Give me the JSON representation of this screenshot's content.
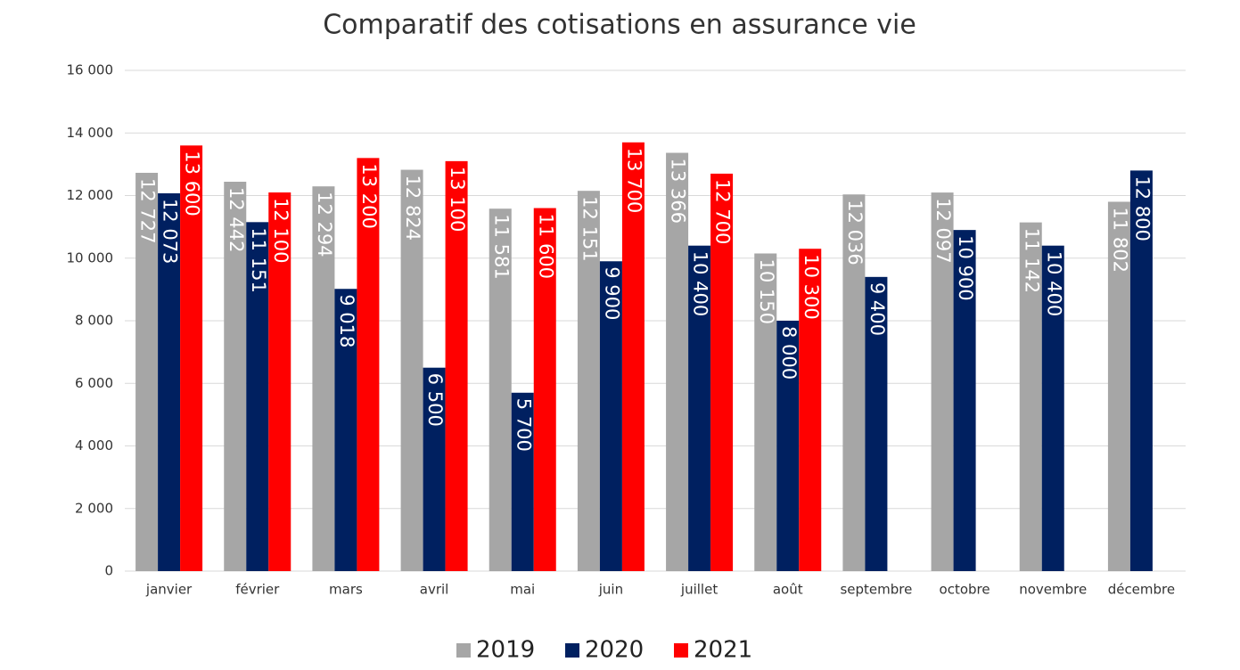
{
  "chart_data": {
    "type": "bar",
    "title": "Comparatif des cotisations en assurance vie",
    "categories": [
      "janvier",
      "février",
      "mars",
      "avril",
      "mai",
      "juin",
      "juillet",
      "août",
      "septembre",
      "octobre",
      "novembre",
      "décembre"
    ],
    "series": [
      {
        "name": "2019",
        "color": "#a6a6a6",
        "values": [
          12727,
          12442,
          12294,
          12824,
          11581,
          12151,
          13366,
          10150,
          12036,
          12097,
          11142,
          11802
        ],
        "value_labels": [
          "12 727",
          "12 442",
          "12 294",
          "12 824",
          "11 581",
          "12 151",
          "13 366",
          "10 150",
          "12 036",
          "12 097",
          "11 142",
          "11 802"
        ]
      },
      {
        "name": "2020",
        "color": "#002060",
        "values": [
          12073,
          11151,
          9018,
          6500,
          5700,
          9900,
          10400,
          8000,
          9400,
          10900,
          10400,
          12800
        ],
        "value_labels": [
          "12 073",
          "11 151",
          "9 018",
          "6 500",
          "5 700",
          "9 900",
          "10 400",
          "8 000",
          "9 400",
          "10 900",
          "10 400",
          "12 800"
        ]
      },
      {
        "name": "2021",
        "color": "#ff0000",
        "values": [
          13600,
          12100,
          13200,
          13100,
          11600,
          13700,
          12700,
          10300,
          null,
          null,
          null,
          null
        ],
        "value_labels": [
          "13 600",
          "12 100",
          "13 200",
          "13 100",
          "11 600",
          "13 700",
          "12 700",
          "10 300",
          null,
          null,
          null,
          null
        ]
      }
    ],
    "ylim": [
      0,
      16000
    ],
    "yticks": [
      0,
      {
        "value": 2000,
        "label": "2 000"
      },
      {
        "value": 4000,
        "label": "4 000"
      },
      {
        "value": 6000,
        "label": "6 000"
      },
      {
        "value": 8000,
        "label": "8 000"
      },
      {
        "value": 10000,
        "label": "10 000"
      },
      {
        "value": 12000,
        "label": "12 000"
      },
      {
        "value": 14000,
        "label": "14 000"
      },
      {
        "value": 16000,
        "label": "16 000"
      }
    ],
    "grid": true,
    "legend": "bottom"
  }
}
